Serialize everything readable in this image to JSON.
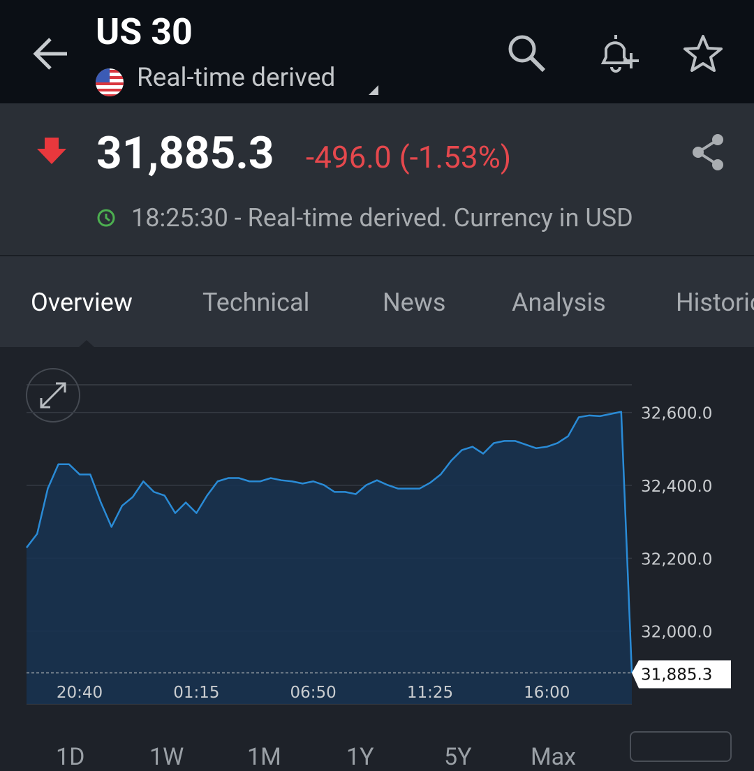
{
  "header": {
    "title": "US 30",
    "subtitle": "Real-time derived"
  },
  "quote": {
    "price": "31,885.3",
    "change": "-496.0 (-1.53%)",
    "info": "18:25:30 - Real-time derived. Currency in USD"
  },
  "tabs": [
    "Overview",
    "Technical",
    "News",
    "Analysis",
    "Historical"
  ],
  "ranges": [
    "1D",
    "1W",
    "1M",
    "1Y",
    "5Y",
    "Max"
  ],
  "chart_data": {
    "type": "area",
    "color": "#2a8bd6",
    "fill_color": "#173351",
    "categories": [
      null,
      null,
      null,
      null,
      null,
      "20:40",
      null,
      null,
      null,
      null,
      null,
      null,
      null,
      null,
      null,
      null,
      "01:15",
      null,
      null,
      null,
      null,
      null,
      null,
      null,
      null,
      null,
      null,
      "06:50",
      null,
      null,
      null,
      null,
      null,
      null,
      null,
      null,
      null,
      null,
      "11:25",
      null,
      null,
      null,
      null,
      null,
      null,
      null,
      null,
      null,
      null,
      "16:00",
      null,
      null,
      null,
      null,
      null,
      null,
      null,
      null
    ],
    "values": [
      32229,
      32267,
      32391,
      32458,
      32458,
      32430,
      32430,
      32353,
      32286,
      32344,
      32368,
      32411,
      32382,
      32372,
      32324,
      32353,
      32324,
      32372,
      32411,
      32420,
      32420,
      32411,
      32411,
      32420,
      32414,
      32411,
      32405,
      32411,
      32401,
      32382,
      32382,
      32376,
      32401,
      32414,
      32401,
      32391,
      32391,
      32391,
      32407,
      32430,
      32468,
      32497,
      32506,
      32487,
      32516,
      32522,
      32522,
      32512,
      32502,
      32506,
      32516,
      32535,
      32587,
      32592,
      32590,
      32596,
      32602,
      31885.3
    ],
    "value_labels": [
      null,
      null,
      null,
      null,
      null,
      null,
      null,
      null,
      null,
      null,
      null,
      null,
      null,
      null,
      null,
      null,
      null,
      null,
      null,
      null,
      null,
      null,
      null,
      null,
      null,
      null,
      null,
      null,
      null,
      null,
      null,
      null,
      null,
      null,
      null,
      null,
      null,
      null,
      null,
      null,
      null,
      null,
      null,
      null,
      null,
      null,
      null,
      null,
      null,
      null,
      null,
      null,
      null,
      null,
      null,
      null,
      null,
      "31,885.3"
    ],
    "ylim": [
      31800,
      32676
    ],
    "yticks": [
      {
        "value": 32000,
        "label": "32,000.0"
      },
      {
        "value": 32200,
        "label": "32,200.0"
      },
      {
        "value": 32400,
        "label": "32,400.0"
      },
      {
        "value": 32600,
        "label": "32,600.0"
      }
    ],
    "grid": true
  }
}
